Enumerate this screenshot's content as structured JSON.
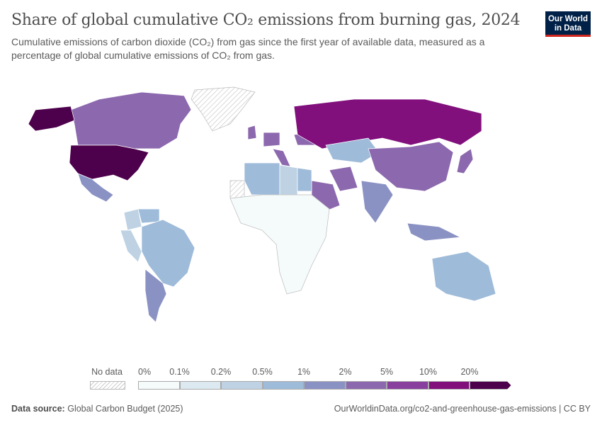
{
  "header": {
    "title": "Share of global cumulative CO₂ emissions from burning gas, 2024",
    "subtitle": "Cumulative emissions of carbon dioxide (CO₂) from gas since the first year of available data, measured as a percentage of global cumulative emissions of CO₂ from gas.",
    "logo": {
      "line1": "Our World",
      "line2": "in Data"
    }
  },
  "legend": {
    "no_data_label": "No data",
    "bins": [
      "0%",
      "0.1%",
      "0.2%",
      "0.5%",
      "1%",
      "2%",
      "5%",
      "10%",
      "20%"
    ],
    "colors": [
      "#f5fafb",
      "#dde9f1",
      "#bed2e4",
      "#9ebbd9",
      "#8a92c4",
      "#8c68ae",
      "#893f9e",
      "#810f7c",
      "#4d004b"
    ],
    "no_data_color": "#e8e8e8"
  },
  "map_data": {
    "United States": "20%+",
    "Russia": "10-20%",
    "Canada": "2-5%",
    "China": "2-5%",
    "Iran": "2-5%",
    "Saudi Arabia": "2-5%",
    "Japan": "2-5%",
    "United Kingdom": "2-5%",
    "Mexico": "1-2%",
    "India": "1-2%",
    "Argentina": "1-2%",
    "Indonesia": "1-2%",
    "Ukraine": "2-5%",
    "Germany": "2-5%",
    "Italy": "2-5%",
    "Australia": "0.5-1%",
    "Brazil": "0.5-1%",
    "Algeria": "0.5-1%",
    "Kazakhstan": "0.5-1%",
    "Egypt": "0.5-1%",
    "Venezuela": "0.5-1%",
    "Nigeria": "0.5-1%",
    "Libya": "0.2-0.5%",
    "Colombia": "0.2-0.5%",
    "Peru": "0.2-0.5%",
    "Greenland": "No data",
    "Western Sahara": "No data"
  },
  "footer": {
    "source_label": "Data source:",
    "source": "Global Carbon Budget (2025)",
    "url": "OurWorldinData.org/co2-and-greenhouse-gas-emissions | CC BY"
  }
}
